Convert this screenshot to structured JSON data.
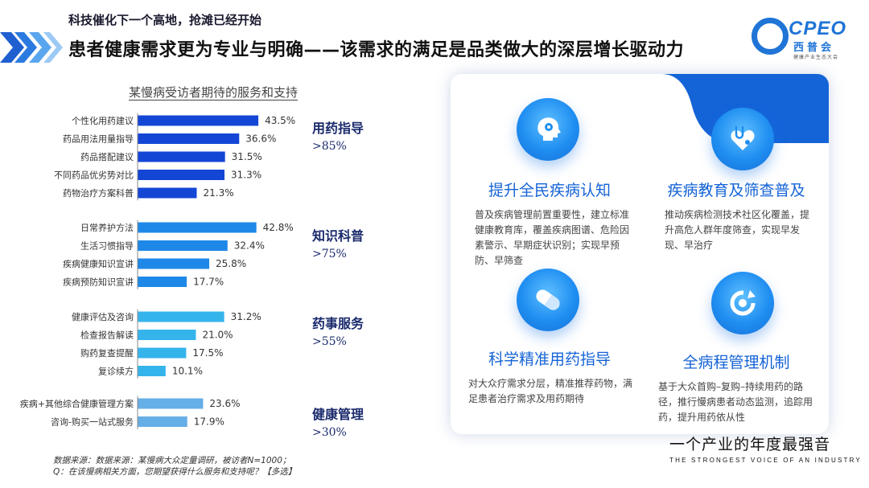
{
  "header": {
    "tagline": "科技催化下一个高地，抢滩已经开始",
    "title": "患者健康需求更为专业与明确——该需求的满足是品类做大的深层增长驱动力"
  },
  "logo": {
    "mark": "CPEO",
    "name_cn": "西普会",
    "sub": "健康产业生态大会",
    "color": "#1f74d6"
  },
  "chart_data": {
    "type": "bar",
    "orientation": "horizontal",
    "title": "某慢病受访者期待的服务和支持",
    "unit": "%",
    "groups": [
      {
        "name": "用药指导",
        "value": ">85%",
        "color": "#1446d6",
        "items": [
          {
            "label": "个性化用药建议",
            "value": 43.5
          },
          {
            "label": "药品用法用量指导",
            "value": 36.6
          },
          {
            "label": "药品搭配建议",
            "value": 31.5
          },
          {
            "label": "不同药品优劣势对比",
            "value": 31.3
          },
          {
            "label": "药物治疗方案科普",
            "value": 21.3
          }
        ]
      },
      {
        "name": "知识科普",
        "value": ">75%",
        "color": "#1e88e8",
        "items": [
          {
            "label": "日常养护方法",
            "value": 42.8
          },
          {
            "label": "生活习惯指导",
            "value": 32.4
          },
          {
            "label": "疾病健康知识宣讲",
            "value": 25.8
          },
          {
            "label": "疾病预防知识宣讲",
            "value": 17.7
          }
        ]
      },
      {
        "name": "药事服务",
        "value": ">55%",
        "color": "#35b4ec",
        "items": [
          {
            "label": "健康评估及咨询",
            "value": 31.2
          },
          {
            "label": "检查报告解读",
            "value": 21.0
          },
          {
            "label": "购药复查提醒",
            "value": 17.5
          },
          {
            "label": "复诊续方",
            "value": 10.1
          }
        ]
      },
      {
        "name": "健康管理",
        "value": ">30%",
        "color": "#66aee6",
        "items": [
          {
            "label": "疾病+其他综合健康管理方案",
            "value": 23.6
          },
          {
            "label": "咨询-购买一站式服务",
            "value": 17.9
          }
        ]
      }
    ]
  },
  "source": {
    "line1": "数据来源：数据来源：某慢病大众定量调研，被访者N=1000；",
    "line2": "Q：在该慢病相关方面，您期望获得什么服务和支持呢？【多选】"
  },
  "features": [
    {
      "icon": "brain-gear-icon",
      "title": "提升全民疾病认知",
      "desc": "普及疾病管理前置重要性，建立标准健康教育库，覆盖疾病图谱、危险因素警示、早期症状识别；实现早预防、早筛查"
    },
    {
      "icon": "stethoscope-heart-icon",
      "title": "疾病教育及筛查普及",
      "desc": "推动疾病检测技术社区化覆盖，提升高危人群年度筛查，实现早发现、早治疗"
    },
    {
      "icon": "pill-icon",
      "title": "科学精准用药指导",
      "desc": "对大众疗需求分层，精准推荐药物，满足患者治疗需求及用药期待"
    },
    {
      "icon": "cycle-icon",
      "title": "全病程管理机制",
      "desc": "基于大众首购–复购–持续用药的路径，推行慢病患者动态监测，追踪用药，提升用药依从性"
    }
  ],
  "slogan": {
    "cn": "一个产业的年度最强音",
    "en": "THE STRONGEST VOICE OF AN INDUSTRY"
  },
  "colors": {
    "accent": "#1464d8"
  }
}
